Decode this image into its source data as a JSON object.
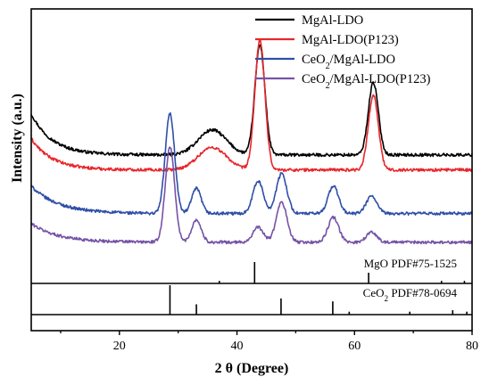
{
  "chart_data": {
    "type": "line",
    "xlabel": "2 θ (Degree)",
    "ylabel": "Intensity (a.u.)",
    "xlim": [
      5,
      80
    ],
    "x_ticks": [
      20,
      40,
      60,
      80
    ],
    "legend_position": "top-right",
    "series": [
      {
        "name": "MgAl-LDO",
        "color": "#000000",
        "baseline": 0.415,
        "bg": {
          "start": 0.165,
          "decay": 1.25
        },
        "peaks": [
          {
            "x": 35.8,
            "h": 0.1,
            "w": 2.4
          },
          {
            "x": 43.9,
            "h": 0.44,
            "w": 0.85
          },
          {
            "x": 63.2,
            "h": 0.29,
            "w": 0.85
          }
        ]
      },
      {
        "name": "MgAl-LDO(P123)",
        "color": "#e8262b",
        "baseline": 0.355,
        "bg": {
          "start": 0.125,
          "decay": 1.25
        },
        "peaks": [
          {
            "x": 35.8,
            "h": 0.09,
            "w": 2.4
          },
          {
            "x": 43.9,
            "h": 0.52,
            "w": 0.85
          },
          {
            "x": 63.2,
            "h": 0.3,
            "w": 0.85
          }
        ]
      },
      {
        "name": "CeO_2/MgAl-LDO",
        "color": "#2f4fa8",
        "baseline": 0.18,
        "bg": {
          "start": 0.11,
          "decay": 1.6
        },
        "peaks": [
          {
            "x": 28.6,
            "h": 0.4,
            "w": 0.8
          },
          {
            "x": 33.1,
            "h": 0.1,
            "w": 0.8
          },
          {
            "x": 43.6,
            "h": 0.13,
            "w": 0.9
          },
          {
            "x": 47.6,
            "h": 0.16,
            "w": 0.9
          },
          {
            "x": 56.4,
            "h": 0.11,
            "w": 0.9
          },
          {
            "x": 62.9,
            "h": 0.07,
            "w": 0.9
          }
        ]
      },
      {
        "name": "CeO_2/MgAl-LDO(P123)",
        "color": "#7553a6",
        "baseline": 0.065,
        "bg": {
          "start": 0.075,
          "decay": 1.6
        },
        "peaks": [
          {
            "x": 28.6,
            "h": 0.38,
            "w": 0.8
          },
          {
            "x": 33.1,
            "h": 0.09,
            "w": 0.8
          },
          {
            "x": 43.6,
            "h": 0.06,
            "w": 0.9
          },
          {
            "x": 47.6,
            "h": 0.16,
            "w": 0.9
          },
          {
            "x": 56.4,
            "h": 0.1,
            "w": 0.9
          },
          {
            "x": 62.9,
            "h": 0.04,
            "w": 0.9
          }
        ]
      }
    ],
    "reference_patterns": [
      {
        "label": "MgO PDF#75-1525",
        "lines": [
          {
            "x": 37.0,
            "i": 0.12
          },
          {
            "x": 43.0,
            "i": 1.0
          },
          {
            "x": 62.4,
            "i": 0.5
          },
          {
            "x": 74.8,
            "i": 0.12
          },
          {
            "x": 78.7,
            "i": 0.12
          }
        ]
      },
      {
        "label": "CeO_2 PDF#78-0694",
        "lines": [
          {
            "x": 28.6,
            "i": 1.0
          },
          {
            "x": 33.1,
            "i": 0.35
          },
          {
            "x": 47.5,
            "i": 0.55
          },
          {
            "x": 56.3,
            "i": 0.45
          },
          {
            "x": 59.1,
            "i": 0.1
          },
          {
            "x": 69.4,
            "i": 0.1
          },
          {
            "x": 76.7,
            "i": 0.15
          },
          {
            "x": 79.1,
            "i": 0.1
          }
        ]
      }
    ]
  }
}
